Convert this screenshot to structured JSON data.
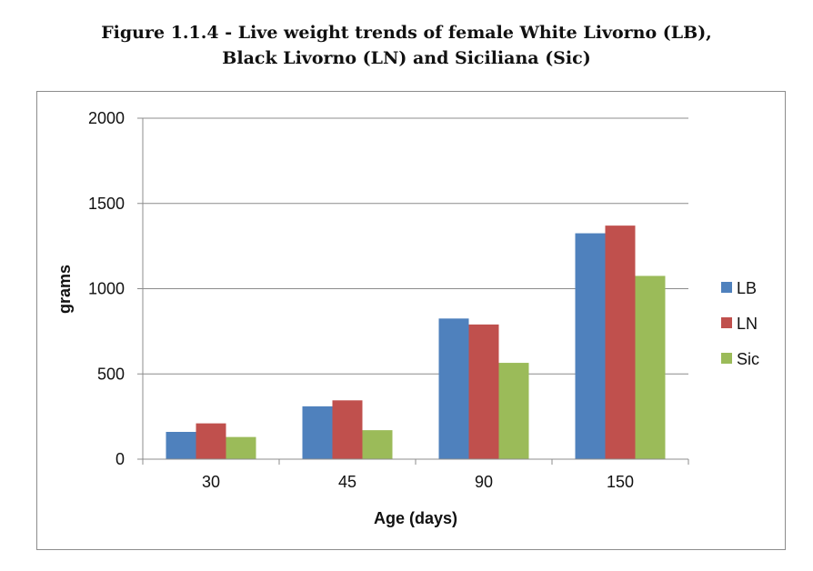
{
  "figure": {
    "title_line1": "Figure 1.1.4 - Live weight trends of female White Livorno (LB),",
    "title_line2": "Black Livorno (LN) and Siciliana (Sic)"
  },
  "chart_data": {
    "type": "bar",
    "title": "Figure 1.1.4 - Live weight trends of female White Livorno (LB), Black Livorno (LN) and Siciliana (Sic)",
    "xlabel": "Age (days)",
    "ylabel": "grams",
    "categories": [
      "30",
      "45",
      "90",
      "150"
    ],
    "ylim": [
      0,
      2000
    ],
    "yticks": [
      0,
      500,
      1000,
      1500,
      2000
    ],
    "grid": true,
    "legend_position": "right",
    "series": [
      {
        "name": "LB",
        "color": "#4f81bd",
        "values": [
          160,
          310,
          825,
          1325
        ]
      },
      {
        "name": "LN",
        "color": "#c0504d",
        "values": [
          210,
          345,
          790,
          1370
        ]
      },
      {
        "name": "Sic",
        "color": "#9bbb59",
        "values": [
          130,
          170,
          565,
          1075
        ]
      }
    ]
  }
}
